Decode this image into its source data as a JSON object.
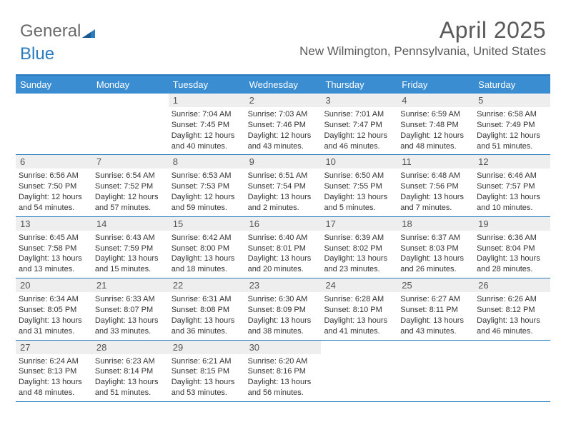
{
  "logo": {
    "part1": "General",
    "part2": "Blue"
  },
  "title": "April 2025",
  "subtitle": "New Wilmington, Pennsylvania, United States",
  "colors": {
    "header_bg": "#3a8dd0",
    "border_top": "#2b7bbf",
    "row_border": "#2b7bbf",
    "daynum_bg": "#eeeeee",
    "text": "#333333",
    "logo_gray": "#6a6a6a",
    "logo_blue": "#2b7bbf"
  },
  "weekdays": [
    "Sunday",
    "Monday",
    "Tuesday",
    "Wednesday",
    "Thursday",
    "Friday",
    "Saturday"
  ],
  "weeks": [
    [
      null,
      null,
      {
        "n": "1",
        "sr": "7:04 AM",
        "ss": "7:45 PM",
        "dl": "12 hours and 40 minutes."
      },
      {
        "n": "2",
        "sr": "7:03 AM",
        "ss": "7:46 PM",
        "dl": "12 hours and 43 minutes."
      },
      {
        "n": "3",
        "sr": "7:01 AM",
        "ss": "7:47 PM",
        "dl": "12 hours and 46 minutes."
      },
      {
        "n": "4",
        "sr": "6:59 AM",
        "ss": "7:48 PM",
        "dl": "12 hours and 48 minutes."
      },
      {
        "n": "5",
        "sr": "6:58 AM",
        "ss": "7:49 PM",
        "dl": "12 hours and 51 minutes."
      }
    ],
    [
      {
        "n": "6",
        "sr": "6:56 AM",
        "ss": "7:50 PM",
        "dl": "12 hours and 54 minutes."
      },
      {
        "n": "7",
        "sr": "6:54 AM",
        "ss": "7:52 PM",
        "dl": "12 hours and 57 minutes."
      },
      {
        "n": "8",
        "sr": "6:53 AM",
        "ss": "7:53 PM",
        "dl": "12 hours and 59 minutes."
      },
      {
        "n": "9",
        "sr": "6:51 AM",
        "ss": "7:54 PM",
        "dl": "13 hours and 2 minutes."
      },
      {
        "n": "10",
        "sr": "6:50 AM",
        "ss": "7:55 PM",
        "dl": "13 hours and 5 minutes."
      },
      {
        "n": "11",
        "sr": "6:48 AM",
        "ss": "7:56 PM",
        "dl": "13 hours and 7 minutes."
      },
      {
        "n": "12",
        "sr": "6:46 AM",
        "ss": "7:57 PM",
        "dl": "13 hours and 10 minutes."
      }
    ],
    [
      {
        "n": "13",
        "sr": "6:45 AM",
        "ss": "7:58 PM",
        "dl": "13 hours and 13 minutes."
      },
      {
        "n": "14",
        "sr": "6:43 AM",
        "ss": "7:59 PM",
        "dl": "13 hours and 15 minutes."
      },
      {
        "n": "15",
        "sr": "6:42 AM",
        "ss": "8:00 PM",
        "dl": "13 hours and 18 minutes."
      },
      {
        "n": "16",
        "sr": "6:40 AM",
        "ss": "8:01 PM",
        "dl": "13 hours and 20 minutes."
      },
      {
        "n": "17",
        "sr": "6:39 AM",
        "ss": "8:02 PM",
        "dl": "13 hours and 23 minutes."
      },
      {
        "n": "18",
        "sr": "6:37 AM",
        "ss": "8:03 PM",
        "dl": "13 hours and 26 minutes."
      },
      {
        "n": "19",
        "sr": "6:36 AM",
        "ss": "8:04 PM",
        "dl": "13 hours and 28 minutes."
      }
    ],
    [
      {
        "n": "20",
        "sr": "6:34 AM",
        "ss": "8:05 PM",
        "dl": "13 hours and 31 minutes."
      },
      {
        "n": "21",
        "sr": "6:33 AM",
        "ss": "8:07 PM",
        "dl": "13 hours and 33 minutes."
      },
      {
        "n": "22",
        "sr": "6:31 AM",
        "ss": "8:08 PM",
        "dl": "13 hours and 36 minutes."
      },
      {
        "n": "23",
        "sr": "6:30 AM",
        "ss": "8:09 PM",
        "dl": "13 hours and 38 minutes."
      },
      {
        "n": "24",
        "sr": "6:28 AM",
        "ss": "8:10 PM",
        "dl": "13 hours and 41 minutes."
      },
      {
        "n": "25",
        "sr": "6:27 AM",
        "ss": "8:11 PM",
        "dl": "13 hours and 43 minutes."
      },
      {
        "n": "26",
        "sr": "6:26 AM",
        "ss": "8:12 PM",
        "dl": "13 hours and 46 minutes."
      }
    ],
    [
      {
        "n": "27",
        "sr": "6:24 AM",
        "ss": "8:13 PM",
        "dl": "13 hours and 48 minutes."
      },
      {
        "n": "28",
        "sr": "6:23 AM",
        "ss": "8:14 PM",
        "dl": "13 hours and 51 minutes."
      },
      {
        "n": "29",
        "sr": "6:21 AM",
        "ss": "8:15 PM",
        "dl": "13 hours and 53 minutes."
      },
      {
        "n": "30",
        "sr": "6:20 AM",
        "ss": "8:16 PM",
        "dl": "13 hours and 56 minutes."
      },
      null,
      null,
      null
    ]
  ],
  "labels": {
    "sunrise": "Sunrise:",
    "sunset": "Sunset:",
    "daylight": "Daylight:"
  }
}
